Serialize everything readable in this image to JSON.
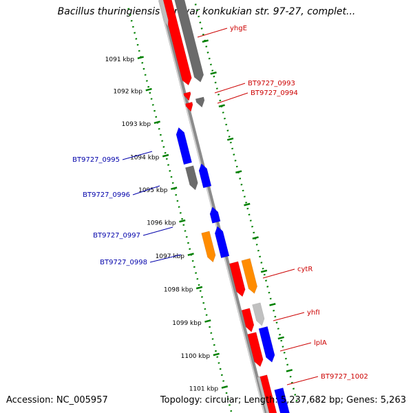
{
  "title": "Bacillus thuringiensis serovar konkukian str. 97-27, complet...",
  "accession": "Accession: NC_005957",
  "summary": "Topology: circular; Length: 5,237,682 bp; Genes: 5,263",
  "colors": {
    "forward_gene": "#ff0000",
    "reverse_gene": "#0000ff",
    "gray_gene": "#6b6b6b",
    "light_gray_gene": "#c0c0c0",
    "orange_gene": "#ff8c00",
    "tick": "#008000",
    "backbone": "#8c8c8c",
    "label_forward": "#cc0000",
    "label_reverse": "#0000aa"
  },
  "scale": {
    "unit": "kbp",
    "tick_labels": [
      "1091 kbp",
      "1092 kbp",
      "1093 kbp",
      "1094 kbp",
      "1095 kbp",
      "1096 kbp",
      "1097 kbp",
      "1098 kbp",
      "1099 kbp",
      "1100 kbp",
      "1101 kbp"
    ]
  },
  "gene_labels": {
    "right": [
      "yhgE",
      "BT9727_0993",
      "BT9727_0994",
      "cytR",
      "yhfI",
      "lplA",
      "BT9727_1002"
    ],
    "left": [
      "BT9727_0995",
      "BT9727_0996",
      "BT9727_0997",
      "BT9727_0998"
    ]
  }
}
